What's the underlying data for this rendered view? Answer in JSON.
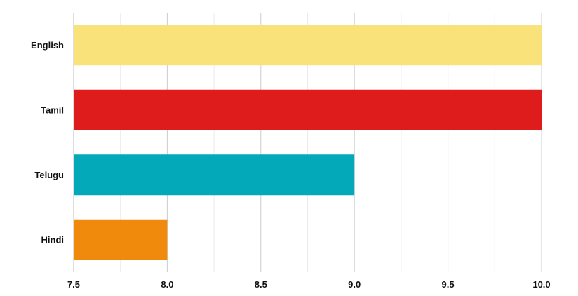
{
  "chart_data": {
    "type": "bar",
    "orientation": "horizontal",
    "categories": [
      "English",
      "Tamil",
      "Telugu",
      "Hindi"
    ],
    "values": [
      10.0,
      10.0,
      9.0,
      8.0
    ],
    "colors": [
      "#f9e27a",
      "#df1c1c",
      "#03a8b9",
      "#f08a0c"
    ],
    "xlim": [
      7.5,
      10.0
    ],
    "x_ticks": [
      "7.5",
      "8.0",
      "8.5",
      "9.0",
      "9.5",
      "10.0"
    ],
    "tick_values": [
      7.5,
      8.0,
      8.5,
      9.0,
      9.5,
      10.0
    ],
    "minor_gridlines": true,
    "grid": true,
    "title": "",
    "xlabel": "",
    "ylabel": ""
  }
}
